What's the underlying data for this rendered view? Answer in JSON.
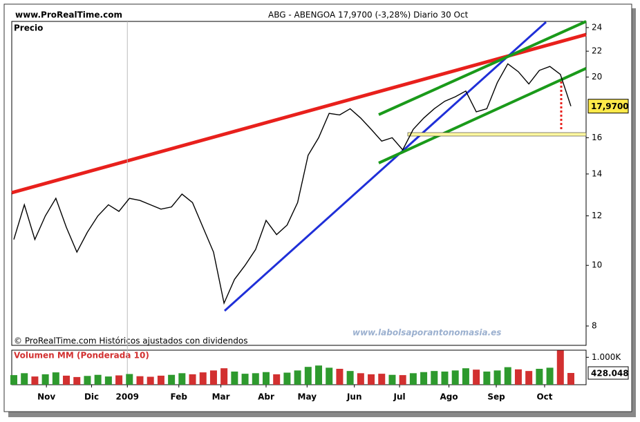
{
  "site": "www.ProRealTime.com",
  "chart_data": [
    {
      "type": "line",
      "title": "ABG - ABENGOA    17,9700 (-3,28%)    Diario  30 Oct",
      "panel_label": "Precio",
      "source": "© ProRealTime.com Históricos ajustados con dividendos",
      "watermark": "www.labolsaporantonomasia.es",
      "x": [
        0,
        1,
        2,
        3,
        4,
        5,
        6,
        7,
        8,
        9,
        10,
        11,
        12,
        13,
        14,
        15,
        16,
        17,
        18,
        19,
        20,
        21,
        22,
        23,
        24,
        25,
        26,
        27,
        28,
        29,
        30,
        31,
        32,
        33,
        34,
        35,
        36,
        37,
        38,
        39,
        40,
        41,
        42,
        43,
        44,
        45,
        46,
        47,
        48,
        49,
        50,
        51,
        52,
        53
      ],
      "values": [
        11.0,
        12.5,
        11.0,
        12.0,
        12.8,
        11.5,
        10.5,
        11.3,
        12.0,
        12.5,
        12.2,
        12.8,
        12.7,
        12.5,
        12.3,
        12.4,
        13.0,
        12.6,
        11.5,
        10.5,
        8.7,
        9.5,
        10.0,
        10.6,
        11.8,
        11.2,
        11.6,
        12.6,
        15.0,
        16.0,
        17.5,
        17.4,
        17.8,
        17.2,
        16.5,
        15.8,
        16.0,
        15.3,
        16.5,
        17.2,
        17.8,
        18.3,
        18.6,
        19.0,
        17.6,
        17.8,
        19.6,
        21.0,
        20.4,
        19.5,
        20.5,
        20.8,
        20.2,
        17.97
      ],
      "last_price": {
        "value": 17.97,
        "label": "17,9700"
      },
      "color": "#000000",
      "log": true,
      "xlim": [
        0,
        53
      ],
      "ylim": [
        7.45,
        24.55
      ],
      "yticks": [
        8,
        10,
        12,
        14,
        16,
        20,
        22,
        24
      ]
    },
    {
      "type": "bar",
      "title": "Volumen MM (Ponderada 10)",
      "x": [
        0,
        1,
        2,
        3,
        4,
        5,
        6,
        7,
        8,
        9,
        10,
        11,
        12,
        13,
        14,
        15,
        16,
        17,
        18,
        19,
        20,
        21,
        22,
        23,
        24,
        25,
        26,
        27,
        28,
        29,
        30,
        31,
        32,
        33,
        34,
        35,
        36,
        37,
        38,
        39,
        40,
        41,
        42,
        43,
        44,
        45,
        46,
        47,
        48,
        49,
        50,
        51,
        52,
        53
      ],
      "values": [
        350000,
        420000,
        300000,
        380000,
        450000,
        330000,
        280000,
        320000,
        360000,
        300000,
        340000,
        390000,
        310000,
        290000,
        330000,
        360000,
        420000,
        380000,
        450000,
        520000,
        600000,
        480000,
        400000,
        420000,
        460000,
        380000,
        440000,
        520000,
        650000,
        700000,
        620000,
        580000,
        500000,
        420000,
        380000,
        400000,
        360000,
        350000,
        420000,
        460000,
        500000,
        480000,
        520000,
        600000,
        550000,
        480000,
        520000,
        640000,
        560000,
        500000,
        580000,
        620000,
        1250000,
        428048
      ],
      "last_volume": {
        "value": 428048,
        "label": "428.048"
      },
      "up_color": "#2e9a2e",
      "down_color": "#d23030",
      "xlim": [
        0,
        53
      ],
      "ylim": [
        0,
        1260000
      ],
      "yticks": [
        {
          "value": 1000000,
          "label": "1.000K"
        }
      ],
      "xticks": [
        {
          "value": 3.1,
          "label": "Nov"
        },
        {
          "value": 7.4,
          "label": "Dic"
        },
        {
          "value": 10.8,
          "label": "2009"
        },
        {
          "value": 15.7,
          "label": "Feb"
        },
        {
          "value": 19.7,
          "label": "Mar"
        },
        {
          "value": 24.0,
          "label": "Abr"
        },
        {
          "value": 27.9,
          "label": "May"
        },
        {
          "value": 32.4,
          "label": "Jun"
        },
        {
          "value": 36.7,
          "label": "Jul"
        },
        {
          "value": 41.4,
          "label": "Ago"
        },
        {
          "value": 45.9,
          "label": "Sep"
        },
        {
          "value": 50.5,
          "label": "Oct"
        }
      ]
    }
  ]
}
